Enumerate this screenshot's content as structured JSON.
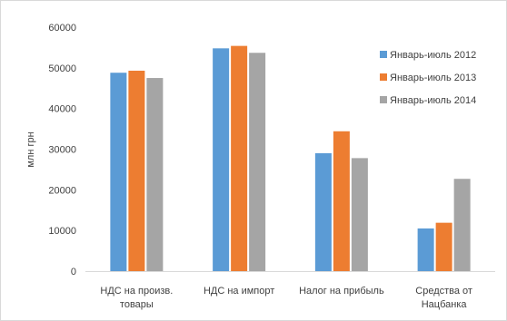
{
  "chart_data": {
    "type": "bar",
    "ylabel": "млн грн",
    "xlabel": "",
    "ylim": [
      0,
      60000
    ],
    "yticks": [
      0,
      10000,
      20000,
      30000,
      40000,
      50000,
      60000
    ],
    "categories": [
      [
        "НДС на произв.",
        "товары"
      ],
      [
        "НДС на импорт"
      ],
      [
        "Налог на прибыль"
      ],
      [
        "Средства от",
        "Нацбанка"
      ]
    ],
    "series": [
      {
        "name": "Январь-июль 2012",
        "color": "#5b9bd5",
        "values": [
          48800,
          54800,
          29000,
          10500
        ]
      },
      {
        "name": "Январь-июль 2013",
        "color": "#ed7d31",
        "values": [
          49300,
          55400,
          34400,
          11900
        ]
      },
      {
        "name": "Январь-июль 2014",
        "color": "#a5a5a5",
        "values": [
          47500,
          53700,
          27800,
          22700
        ]
      }
    ],
    "grid": false,
    "legend_position": "top-right"
  }
}
